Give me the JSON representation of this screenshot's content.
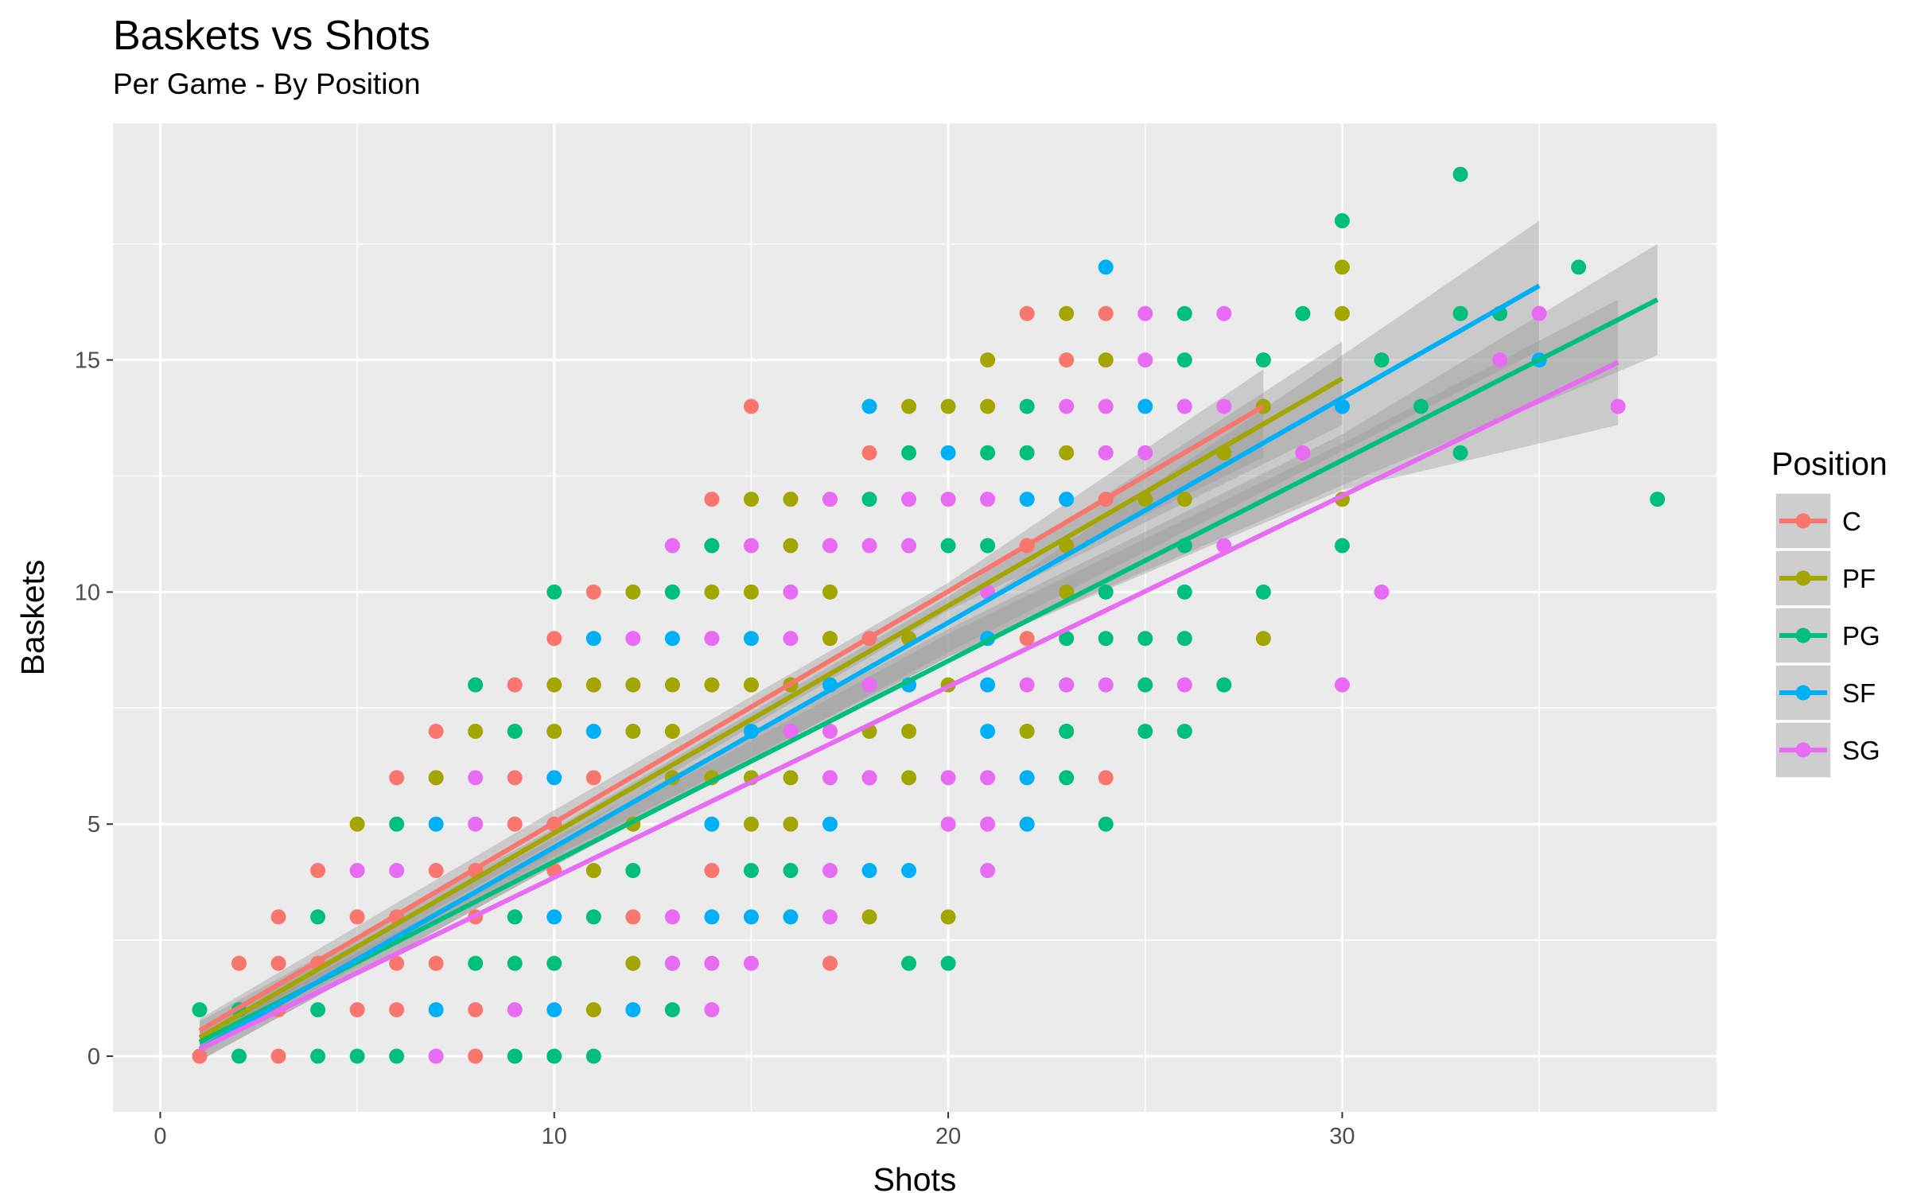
{
  "chart_data": {
    "type": "scatter",
    "title": "Baskets vs Shots",
    "subtitle": "Per Game - By Position",
    "xlabel": "Shots",
    "ylabel": "Baskets",
    "xlim": [
      -1.2,
      39.5
    ],
    "ylim": [
      -1.2,
      20.1
    ],
    "x_ticks": [
      0,
      10,
      20,
      30
    ],
    "y_ticks": [
      0,
      5,
      10,
      15
    ],
    "x_tick_labels": [
      "0",
      "10",
      "20",
      "30"
    ],
    "y_tick_labels": [
      "0",
      "5",
      "10",
      "15"
    ],
    "grid": true,
    "panel_background": "#ebebeb",
    "legend": {
      "title": "Position",
      "position": "right"
    },
    "series": [
      {
        "name": "C",
        "color": "#F8766D",
        "points": [
          [
            1,
            0
          ],
          [
            2,
            2
          ],
          [
            3,
            3
          ],
          [
            3,
            2
          ],
          [
            3,
            1
          ],
          [
            3,
            0
          ],
          [
            4,
            4
          ],
          [
            4,
            2
          ],
          [
            5,
            3
          ],
          [
            5,
            1
          ],
          [
            6,
            6
          ],
          [
            6,
            3
          ],
          [
            6,
            2
          ],
          [
            6,
            1
          ],
          [
            7,
            7
          ],
          [
            7,
            6
          ],
          [
            7,
            4
          ],
          [
            7,
            2
          ],
          [
            8,
            4
          ],
          [
            8,
            3
          ],
          [
            8,
            1
          ],
          [
            8,
            0
          ],
          [
            9,
            8
          ],
          [
            9,
            6
          ],
          [
            9,
            5
          ],
          [
            10,
            9
          ],
          [
            10,
            7
          ],
          [
            10,
            5
          ],
          [
            10,
            4
          ],
          [
            11,
            10
          ],
          [
            11,
            6
          ],
          [
            12,
            3
          ],
          [
            14,
            12
          ],
          [
            14,
            4
          ],
          [
            15,
            14
          ],
          [
            16,
            8
          ],
          [
            17,
            2
          ],
          [
            18,
            13
          ],
          [
            18,
            9
          ],
          [
            22,
            16
          ],
          [
            22,
            11
          ],
          [
            22,
            9
          ],
          [
            23,
            15
          ],
          [
            24,
            16
          ],
          [
            24,
            12
          ],
          [
            24,
            6
          ]
        ],
        "fit": {
          "x0": 1,
          "y0": 0.55,
          "x1": 28,
          "y1": 14.0
        },
        "band": {
          "lower": [
            [
              1,
              0.3
            ],
            [
              10,
              4.6
            ],
            [
              20,
              9.6
            ],
            [
              28,
              12.9
            ]
          ],
          "upper": [
            [
              1,
              0.8
            ],
            [
              10,
              5.3
            ],
            [
              20,
              10.2
            ],
            [
              28,
              14.8
            ]
          ]
        }
      },
      {
        "name": "PF",
        "color": "#A3A500",
        "points": [
          [
            5,
            5
          ],
          [
            7,
            6
          ],
          [
            8,
            7
          ],
          [
            10,
            8
          ],
          [
            10,
            7
          ],
          [
            11,
            8
          ],
          [
            11,
            4
          ],
          [
            11,
            1
          ],
          [
            12,
            10
          ],
          [
            12,
            8
          ],
          [
            12,
            7
          ],
          [
            12,
            5
          ],
          [
            12,
            2
          ],
          [
            13,
            10
          ],
          [
            13,
            8
          ],
          [
            13,
            7
          ],
          [
            13,
            6
          ],
          [
            14,
            10
          ],
          [
            14,
            8
          ],
          [
            14,
            6
          ],
          [
            15,
            12
          ],
          [
            15,
            10
          ],
          [
            15,
            8
          ],
          [
            15,
            6
          ],
          [
            15,
            5
          ],
          [
            16,
            12
          ],
          [
            16,
            11
          ],
          [
            16,
            8
          ],
          [
            16,
            6
          ],
          [
            16,
            5
          ],
          [
            17,
            9
          ],
          [
            17,
            10
          ],
          [
            18,
            7
          ],
          [
            18,
            6
          ],
          [
            18,
            3
          ],
          [
            19,
            14
          ],
          [
            19,
            9
          ],
          [
            19,
            6
          ],
          [
            19,
            7
          ],
          [
            20,
            14
          ],
          [
            20,
            8
          ],
          [
            20,
            3
          ],
          [
            21,
            15
          ],
          [
            21,
            14
          ],
          [
            22,
            7
          ],
          [
            23,
            16
          ],
          [
            23,
            13
          ],
          [
            23,
            11
          ],
          [
            23,
            10
          ],
          [
            23,
            7
          ],
          [
            24,
            15
          ],
          [
            25,
            12
          ],
          [
            26,
            12
          ],
          [
            27,
            13
          ],
          [
            28,
            9
          ],
          [
            28,
            14
          ],
          [
            30,
            17
          ],
          [
            30,
            16
          ],
          [
            30,
            12
          ]
        ],
        "fit": {
          "x0": 1,
          "y0": 0.4,
          "x1": 30,
          "y1": 14.6
        },
        "band": {
          "lower": [
            [
              1,
              0.15
            ],
            [
              10,
              4.4
            ],
            [
              20,
              9.4
            ],
            [
              30,
              13.6
            ]
          ],
          "upper": [
            [
              1,
              0.75
            ],
            [
              10,
              4.9
            ],
            [
              20,
              9.9
            ],
            [
              30,
              15.4
            ]
          ]
        }
      },
      {
        "name": "PG",
        "color": "#00BF7D",
        "points": [
          [
            1,
            1
          ],
          [
            2,
            1
          ],
          [
            2,
            0
          ],
          [
            4,
            3
          ],
          [
            4,
            1
          ],
          [
            4,
            0
          ],
          [
            5,
            0
          ],
          [
            6,
            5
          ],
          [
            6,
            0
          ],
          [
            8,
            8
          ],
          [
            8,
            2
          ],
          [
            9,
            7
          ],
          [
            9,
            3
          ],
          [
            9,
            2
          ],
          [
            9,
            0
          ],
          [
            10,
            10
          ],
          [
            10,
            2
          ],
          [
            10,
            0
          ],
          [
            11,
            3
          ],
          [
            11,
            0
          ],
          [
            12,
            4
          ],
          [
            13,
            10
          ],
          [
            13,
            1
          ],
          [
            14,
            11
          ],
          [
            15,
            4
          ],
          [
            16,
            4
          ],
          [
            18,
            12
          ],
          [
            19,
            13
          ],
          [
            19,
            2
          ],
          [
            20,
            11
          ],
          [
            20,
            2
          ],
          [
            21,
            13
          ],
          [
            21,
            11
          ],
          [
            22,
            14
          ],
          [
            22,
            13
          ],
          [
            23,
            9
          ],
          [
            23,
            8
          ],
          [
            23,
            7
          ],
          [
            23,
            6
          ],
          [
            24,
            10
          ],
          [
            24,
            9
          ],
          [
            24,
            5
          ],
          [
            25,
            9
          ],
          [
            25,
            8
          ],
          [
            25,
            7
          ],
          [
            26,
            16
          ],
          [
            26,
            15
          ],
          [
            26,
            11
          ],
          [
            26,
            10
          ],
          [
            26,
            9
          ],
          [
            26,
            7
          ],
          [
            27,
            8
          ],
          [
            28,
            15
          ],
          [
            28,
            10
          ],
          [
            29,
            16
          ],
          [
            30,
            18
          ],
          [
            30,
            11
          ],
          [
            31,
            15
          ],
          [
            32,
            14
          ],
          [
            33,
            19
          ],
          [
            33,
            16
          ],
          [
            33,
            13
          ],
          [
            34,
            16
          ],
          [
            36,
            17
          ],
          [
            38,
            12
          ]
        ],
        "fit": {
          "x0": 1,
          "y0": 0.3,
          "x1": 38,
          "y1": 16.3
        },
        "band": {
          "lower": [
            [
              1,
              0.05
            ],
            [
              10,
              4.3
            ],
            [
              20,
              8.6
            ],
            [
              30,
              12.3
            ],
            [
              38,
              15.1
            ]
          ],
          "upper": [
            [
              1,
              0.6
            ],
            [
              10,
              4.7
            ],
            [
              20,
              9.2
            ],
            [
              30,
              13.4
            ],
            [
              38,
              17.5
            ]
          ]
        }
      },
      {
        "name": "SF",
        "color": "#00B0F6",
        "points": [
          [
            7,
            5
          ],
          [
            7,
            1
          ],
          [
            10,
            6
          ],
          [
            10,
            3
          ],
          [
            10,
            1
          ],
          [
            11,
            9
          ],
          [
            11,
            7
          ],
          [
            12,
            1
          ],
          [
            13,
            9
          ],
          [
            13,
            2
          ],
          [
            14,
            5
          ],
          [
            14,
            3
          ],
          [
            15,
            9
          ],
          [
            15,
            3
          ],
          [
            15,
            7
          ],
          [
            16,
            3
          ],
          [
            17,
            8
          ],
          [
            17,
            5
          ],
          [
            18,
            14
          ],
          [
            18,
            4
          ],
          [
            19,
            8
          ],
          [
            19,
            4
          ],
          [
            20,
            13
          ],
          [
            21,
            9
          ],
          [
            21,
            8
          ],
          [
            21,
            7
          ],
          [
            22,
            12
          ],
          [
            22,
            6
          ],
          [
            22,
            5
          ],
          [
            23,
            12
          ],
          [
            24,
            17
          ],
          [
            25,
            14
          ],
          [
            30,
            14
          ],
          [
            35,
            15
          ]
        ],
        "fit": {
          "x0": 1,
          "y0": 0.15,
          "x1": 35,
          "y1": 16.6
        },
        "band": {
          "lower": [
            [
              1,
              -0.1
            ],
            [
              10,
              4.1
            ],
            [
              20,
              8.7
            ],
            [
              35,
              15.2
            ]
          ],
          "upper": [
            [
              1,
              0.4
            ],
            [
              10,
              4.5
            ],
            [
              20,
              9.3
            ],
            [
              35,
              18.0
            ]
          ]
        }
      },
      {
        "name": "SG",
        "color": "#E76BF3",
        "points": [
          [
            5,
            4
          ],
          [
            6,
            4
          ],
          [
            7,
            0
          ],
          [
            8,
            6
          ],
          [
            8,
            5
          ],
          [
            9,
            1
          ],
          [
            12,
            9
          ],
          [
            13,
            11
          ],
          [
            13,
            3
          ],
          [
            13,
            2
          ],
          [
            14,
            9
          ],
          [
            14,
            2
          ],
          [
            14,
            1
          ],
          [
            15,
            11
          ],
          [
            15,
            2
          ],
          [
            16,
            10
          ],
          [
            16,
            9
          ],
          [
            16,
            7
          ],
          [
            17,
            12
          ],
          [
            17,
            11
          ],
          [
            17,
            7
          ],
          [
            17,
            6
          ],
          [
            17,
            4
          ],
          [
            17,
            3
          ],
          [
            18,
            11
          ],
          [
            18,
            8
          ],
          [
            18,
            6
          ],
          [
            19,
            11
          ],
          [
            19,
            12
          ],
          [
            20,
            12
          ],
          [
            20,
            6
          ],
          [
            20,
            5
          ],
          [
            21,
            12
          ],
          [
            21,
            10
          ],
          [
            21,
            6
          ],
          [
            21,
            5
          ],
          [
            21,
            4
          ],
          [
            22,
            8
          ],
          [
            23,
            14
          ],
          [
            23,
            8
          ],
          [
            24,
            14
          ],
          [
            24,
            13
          ],
          [
            24,
            8
          ],
          [
            25,
            16
          ],
          [
            25,
            15
          ],
          [
            25,
            13
          ],
          [
            26,
            14
          ],
          [
            26,
            8
          ],
          [
            27,
            16
          ],
          [
            27,
            14
          ],
          [
            27,
            11
          ],
          [
            29,
            13
          ],
          [
            30,
            8
          ],
          [
            31,
            10
          ],
          [
            34,
            15
          ],
          [
            35,
            16
          ],
          [
            37,
            14
          ]
        ],
        "fit": {
          "x0": 1,
          "y0": 0.15,
          "x1": 37,
          "y1": 14.95
        },
        "band": {
          "lower": [
            [
              1,
              -0.1
            ],
            [
              10,
              4.1
            ],
            [
              20,
              8.6
            ],
            [
              30,
              12.2
            ],
            [
              37,
              13.6
            ]
          ],
          "upper": [
            [
              1,
              0.4
            ],
            [
              10,
              4.5
            ],
            [
              20,
              9.1
            ],
            [
              30,
              13.2
            ],
            [
              37,
              16.3
            ]
          ]
        }
      }
    ]
  }
}
